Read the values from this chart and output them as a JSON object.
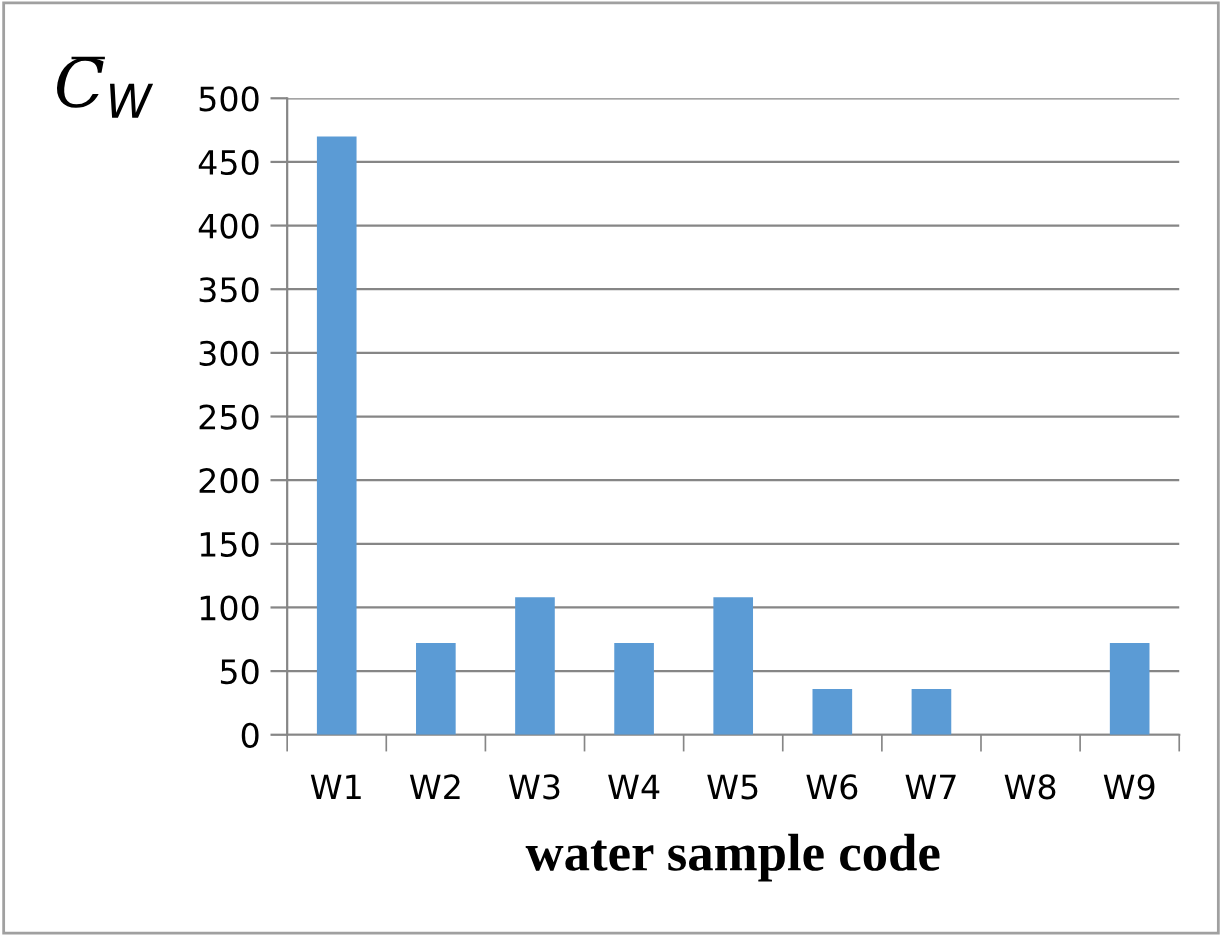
{
  "chart_data": {
    "type": "bar",
    "xlabel": "water sample code",
    "ylabel": "C̅$_{W}$",
    "categories": [
      "W1",
      "W2",
      "W3",
      "W4",
      "W5",
      "W6",
      "W7",
      "W8",
      "W9"
    ],
    "values": [
      470,
      72,
      108,
      72,
      108,
      36,
      36,
      0,
      72
    ],
    "color": "#5b9bd5",
    "ylim": [
      0,
      500
    ],
    "yticks": [
      0,
      50,
      100,
      150,
      200,
      250,
      300,
      350,
      400,
      450,
      500
    ],
    "grid": "y",
    "legend": false
  }
}
